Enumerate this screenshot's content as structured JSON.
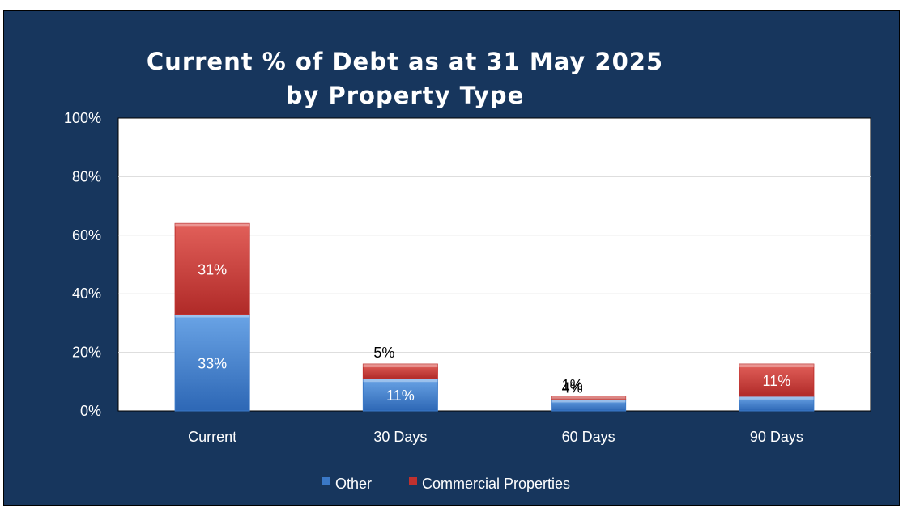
{
  "chart_data": {
    "type": "bar",
    "stacked": true,
    "title_lines": [
      "Current % of Debt as at 31 May 2025",
      "by Property Type"
    ],
    "categories": [
      "Current",
      "30 Days",
      "60 Days",
      "90 Days"
    ],
    "series": [
      {
        "name": "Other",
        "values": [
          33,
          11,
          4,
          5
        ],
        "labels": [
          "33%",
          "11%",
          "4%",
          "5%"
        ]
      },
      {
        "name": "Commercial Properties",
        "values": [
          31,
          5,
          1,
          11
        ],
        "labels": [
          "31%",
          "5%",
          "1%",
          "11%"
        ]
      }
    ],
    "ylim": [
      0,
      100
    ],
    "y_ticks": [
      0,
      20,
      40,
      60,
      80,
      100
    ],
    "y_tick_labels": [
      "0%",
      "20%",
      "40%",
      "60%",
      "80%",
      "100%"
    ],
    "grid": true,
    "legend_position": "bottom",
    "colors": {
      "background": "#17365d",
      "plot_area": "#ffffff",
      "gridline": "#d9d9d9",
      "other": "#3a78c6",
      "other_light": "#6aa4e6",
      "commercial": "#c0312f",
      "commercial_light": "#e2605a",
      "axis_text": "#ffffff"
    }
  }
}
